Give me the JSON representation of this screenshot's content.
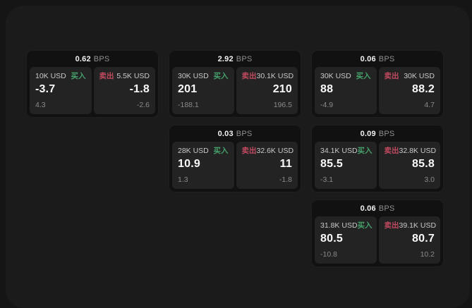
{
  "colors": {
    "buy_green": "#46a06a",
    "sell_red": "#c04a5e",
    "surface": "#1b1b1b",
    "card_bg": "#111112",
    "panel_bg": "#232324"
  },
  "labels": {
    "bps_unit": "BPS",
    "buy": "买入",
    "sell": "卖出"
  },
  "cards": [
    {
      "bps": "0.62",
      "buy": {
        "size": "10K USD",
        "price": "-3.7",
        "change": "4.3"
      },
      "sell": {
        "size": "5.5K USD",
        "price": "-1.8",
        "change": "-2.6"
      }
    },
    {
      "bps": "2.92",
      "buy": {
        "size": "30K USD",
        "price": "201",
        "change": "-188.1"
      },
      "sell": {
        "size": "30.1K USD",
        "price": "210",
        "change": "196.5"
      }
    },
    {
      "bps": "0.06",
      "buy": {
        "size": "30K USD",
        "price": "88",
        "change": "-4.9"
      },
      "sell": {
        "size": "30K USD",
        "price": "88.2",
        "change": "4.7"
      }
    },
    {
      "bps": "0.03",
      "buy": {
        "size": "28K USD",
        "price": "10.9",
        "change": "1.3"
      },
      "sell": {
        "size": "32.6K USD",
        "price": "11",
        "change": "-1.8"
      }
    },
    {
      "bps": "0.09",
      "buy": {
        "size": "34.1K USD",
        "price": "85.5",
        "change": "-3.1"
      },
      "sell": {
        "size": "32.8K USD",
        "price": "85.8",
        "change": "3.0"
      }
    },
    {
      "bps": "0.06",
      "buy": {
        "size": "31.8K USD",
        "price": "80.5",
        "change": "-10.8"
      },
      "sell": {
        "size": "39.1K USD",
        "price": "80.7",
        "change": "10.2"
      }
    }
  ]
}
